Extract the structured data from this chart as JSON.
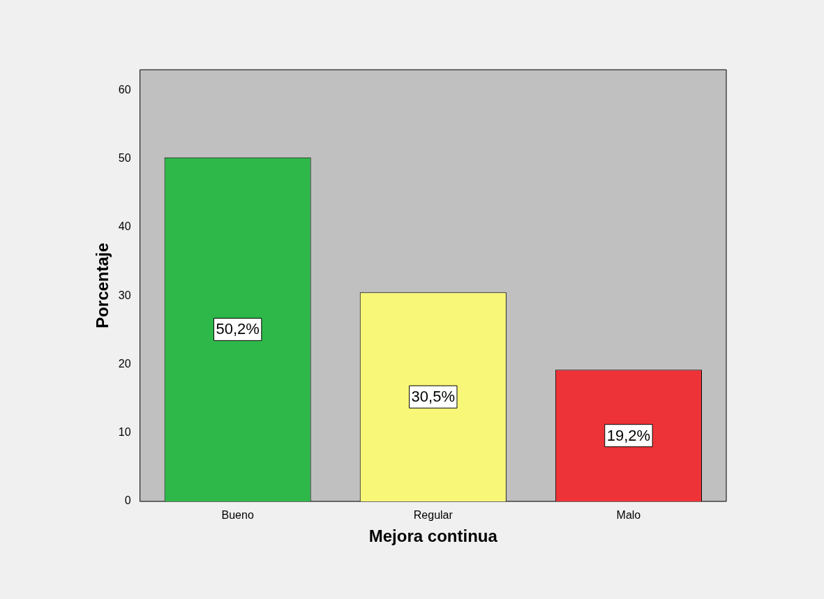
{
  "chart_data": {
    "type": "bar",
    "xlabel": "Mejora continua",
    "ylabel": "Porcentaje",
    "categories": [
      "Bueno",
      "Regular",
      "Malo"
    ],
    "values": [
      50.2,
      30.5,
      19.2
    ],
    "colors": [
      "#2eb84a",
      "#f9f777",
      "#ee3338"
    ],
    "value_labels": [
      "50,2%",
      "30,5%",
      "19,2%"
    ],
    "ylim": [
      0,
      63
    ],
    "yticks": [
      0,
      10,
      20,
      30,
      40,
      50,
      60
    ],
    "grid": false,
    "legend": false
  }
}
